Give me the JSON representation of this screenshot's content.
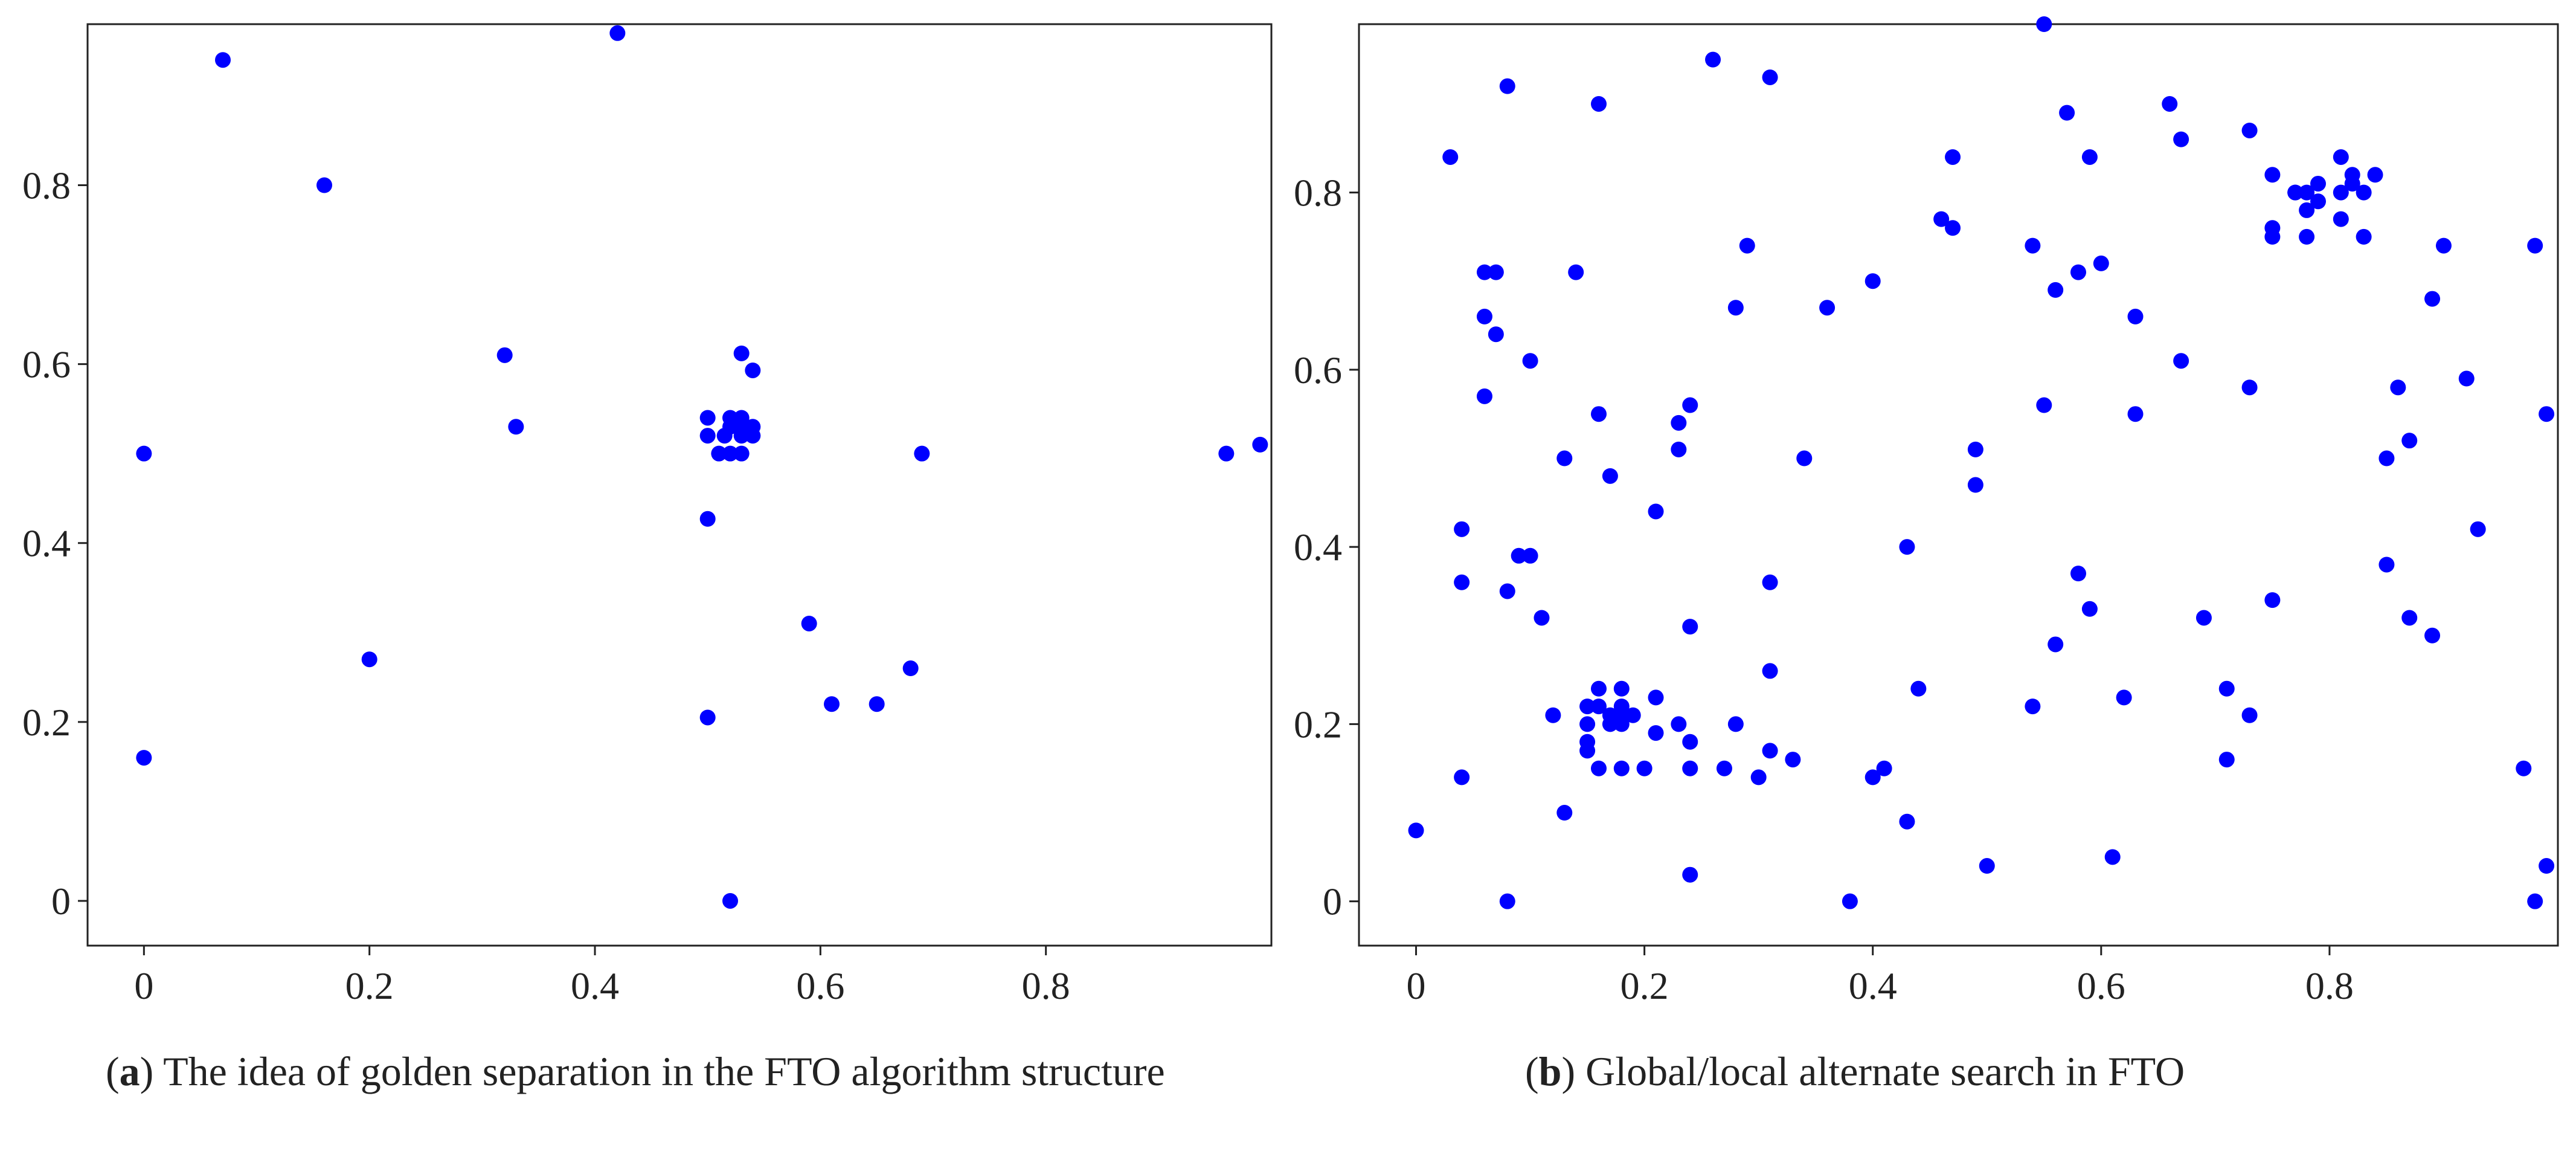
{
  "colors": {
    "marker": "#0000ff",
    "axis": "#222222",
    "background": "#ffffff"
  },
  "chart_data": [
    {
      "type": "scatter",
      "panel_label": "a",
      "caption": " The idea of golden separation in the FTO algorithm structure",
      "title": "",
      "xlabel": "",
      "ylabel": "",
      "xlim": [
        -0.05,
        1.0
      ],
      "ylim": [
        -0.05,
        0.98
      ],
      "grid": false,
      "xticks": [
        0,
        0.2,
        0.4,
        0.6,
        0.8
      ],
      "xtick_labels": [
        "0",
        "0.2",
        "0.4",
        "0.6",
        "0.8"
      ],
      "yticks": [
        0,
        0.2,
        0.4,
        0.6,
        0.8
      ],
      "ytick_labels": [
        "0",
        "0.2",
        "0.4",
        "0.6",
        "0.8"
      ],
      "series": [
        {
          "name": "points",
          "x": [
            0,
            0,
            0.07,
            0.16,
            0.2,
            0.32,
            0.33,
            0.42,
            0.5,
            0.5,
            0.5,
            0.5,
            0.51,
            0.515,
            0.52,
            0.52,
            0.52,
            0.53,
            0.53,
            0.53,
            0.53,
            0.53,
            0.54,
            0.54,
            0.54,
            0.52,
            0.59,
            0.61,
            0.65,
            0.68,
            0.69,
            0.96,
            0.99
          ],
          "y": [
            0.5,
            0.16,
            0.94,
            0.8,
            0.27,
            0.61,
            0.53,
            0.97,
            0.54,
            0.52,
            0.427,
            0.205,
            0.5,
            0.52,
            0.54,
            0.53,
            0.5,
            0.612,
            0.54,
            0.53,
            0.52,
            0.5,
            0.593,
            0.53,
            0.52,
            0,
            0.31,
            0.22,
            0.22,
            0.26,
            0.5,
            0.5,
            0.51
          ]
        }
      ]
    },
    {
      "type": "scatter",
      "panel_label": "b",
      "caption": " Global/local alternate search in FTO",
      "title": "",
      "xlabel": "",
      "ylabel": "",
      "xlim": [
        -0.05,
        1.0
      ],
      "ylim": [
        -0.05,
        0.99
      ],
      "grid": false,
      "xticks": [
        0,
        0.2,
        0.4,
        0.6,
        0.8
      ],
      "xtick_labels": [
        "0",
        "0.2",
        "0.4",
        "0.6",
        "0.8"
      ],
      "yticks": [
        0,
        0.2,
        0.4,
        0.6,
        0.8
      ],
      "ytick_labels": [
        "0",
        "0.2",
        "0.4",
        "0.6",
        "0.8"
      ],
      "series": [
        {
          "name": "points",
          "x": [
            0,
            0.03,
            0.04,
            0.04,
            0.04,
            0.06,
            0.06,
            0.06,
            0.07,
            0.07,
            0.08,
            0.08,
            0.08,
            0.09,
            0.1,
            0.1,
            0.11,
            0.12,
            0.13,
            0.13,
            0.14,
            0.15,
            0.15,
            0.15,
            0.15,
            0.16,
            0.16,
            0.16,
            0.16,
            0.16,
            0.17,
            0.17,
            0.17,
            0.18,
            0.18,
            0.18,
            0.18,
            0.18,
            0.19,
            0.2,
            0.21,
            0.21,
            0.21,
            0.23,
            0.23,
            0.23,
            0.24,
            0.24,
            0.24,
            0.24,
            0.24,
            0.26,
            0.27,
            0.28,
            0.28,
            0.29,
            0.3,
            0.31,
            0.31,
            0.31,
            0.31,
            0.33,
            0.34,
            0.36,
            0.38,
            0.4,
            0.4,
            0.41,
            0.43,
            0.43,
            0.44,
            0.46,
            0.47,
            0.47,
            0.49,
            0.49,
            0.5,
            0.54,
            0.54,
            0.55,
            0.55,
            0.56,
            0.56,
            0.57,
            0.58,
            0.58,
            0.59,
            0.59,
            0.6,
            0.61,
            0.62,
            0.63,
            0.63,
            0.66,
            0.67,
            0.67,
            0.69,
            0.71,
            0.71,
            0.73,
            0.73,
            0.73,
            0.75,
            0.75,
            0.75,
            0.75,
            0.77,
            0.77,
            0.78,
            0.78,
            0.78,
            0.79,
            0.79,
            0.81,
            0.81,
            0.81,
            0.82,
            0.82,
            0.83,
            0.83,
            0.84,
            0.85,
            0.85,
            0.86,
            0.87,
            0.87,
            0.89,
            0.89,
            0.9,
            0.92,
            0.93,
            0.97,
            0.98,
            0.98,
            0.99,
            0.99
          ],
          "y": [
            0.08,
            0.84,
            0.42,
            0.36,
            0.14,
            0.71,
            0.66,
            0.57,
            0.71,
            0.64,
            0.92,
            0.35,
            0,
            0.39,
            0.61,
            0.39,
            0.32,
            0.21,
            0.5,
            0.1,
            0.71,
            0.22,
            0.2,
            0.18,
            0.17,
            0.9,
            0.55,
            0.24,
            0.22,
            0.15,
            0.48,
            0.21,
            0.2,
            0.24,
            0.22,
            0.21,
            0.2,
            0.15,
            0.21,
            0.15,
            0.44,
            0.23,
            0.19,
            0.54,
            0.51,
            0.2,
            0.56,
            0.31,
            0.18,
            0.15,
            0.03,
            0.95,
            0.15,
            0.67,
            0.2,
            0.74,
            0.14,
            0.93,
            0.36,
            0.26,
            0.17,
            0.16,
            0.5,
            0.67,
            0,
            0.7,
            0.14,
            0.15,
            0.4,
            0.09,
            0.24,
            0.77,
            0.84,
            0.76,
            0.51,
            0.47,
            0.04,
            0.74,
            0.22,
            0.99,
            0.56,
            0.69,
            0.29,
            0.89,
            0.71,
            0.37,
            0.84,
            0.33,
            0.72,
            0.05,
            0.23,
            0.66,
            0.55,
            0.9,
            0.86,
            0.61,
            0.32,
            0.24,
            0.16,
            0.87,
            0.58,
            0.21,
            0.82,
            0.76,
            0.75,
            0.34,
            0.8,
            0.8,
            0.8,
            0.78,
            0.75,
            0.81,
            0.79,
            0.84,
            0.8,
            0.77,
            0.81,
            0.82,
            0.8,
            0.75,
            0.82,
            0.5,
            0.38,
            0.58,
            0.52,
            0.32,
            0.68,
            0.3,
            0.74,
            0.59,
            0.42,
            0.15,
            0.74,
            0,
            0.55,
            0.04
          ]
        }
      ]
    }
  ]
}
